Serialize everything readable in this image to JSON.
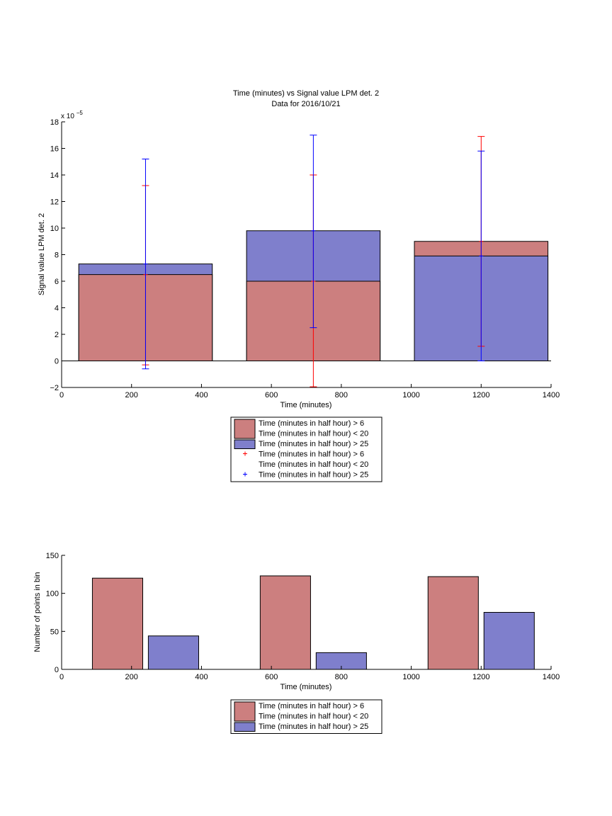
{
  "chart_data": [
    {
      "type": "bar",
      "title": "Time (minutes) vs Signal value LPM det. 2",
      "subtitle": "Data for 2016/10/21",
      "xlabel": "Time (minutes)",
      "ylabel": "Signal value LPM det. 2",
      "y_exponent_label": "x 10",
      "y_exponent_power": "−5",
      "y_scale_multiplier": 1e-05,
      "xlim": [
        0,
        1400
      ],
      "ylim": [
        -2,
        18
      ],
      "xticks": [
        "0",
        "200",
        "400",
        "600",
        "800",
        "1000",
        "1200",
        "1400"
      ],
      "yticks": [
        "−2",
        "0",
        "2",
        "4",
        "6",
        "8",
        "10",
        "12",
        "14",
        "16",
        "18"
      ],
      "grid": false,
      "legend_placement": "below",
      "x": [
        240,
        720,
        1200
      ],
      "series": [
        {
          "name": "Time (minutes in half hour) > 6\nTime (minutes in half hour) < 20",
          "color": "#cc7f7f",
          "values": [
            6.5,
            6.0,
            9.0
          ]
        },
        {
          "name": "Time (minutes in half hour) > 25",
          "color": "#7f7fcc",
          "values": [
            7.3,
            9.8,
            7.9
          ]
        }
      ],
      "errorbars": [
        {
          "name": "Time (minutes in half hour) > 6\nTime (minutes in half hour) < 20",
          "color": "#ff0000",
          "marker": "+",
          "x": [
            240,
            720,
            1200
          ],
          "center": [
            6.5,
            6.0,
            9.0
          ],
          "lower": [
            -0.3,
            -1.95,
            1.1
          ],
          "upper": [
            13.2,
            14.0,
            16.9
          ]
        },
        {
          "name": "Time (minutes in half hour) > 25",
          "color": "#0000ff",
          "marker": "+",
          "x": [
            240,
            720,
            1200
          ],
          "center": [
            7.3,
            9.8,
            7.9
          ],
          "lower": [
            -0.6,
            2.5,
            0.0
          ],
          "upper": [
            15.2,
            17.0,
            15.8
          ]
        }
      ],
      "legend": [
        {
          "label": "Time (minutes in half hour) > 6\nTime (minutes in half hour) < 20",
          "kind": "patch",
          "color": "#cc7f7f"
        },
        {
          "label": "Time (minutes in half hour) > 25",
          "kind": "patch",
          "color": "#7f7fcc"
        },
        {
          "label": "Time (minutes in half hour) > 6\nTime (minutes in half hour) < 20",
          "kind": "marker",
          "color": "#ff0000"
        },
        {
          "label": "Time (minutes in half hour) > 25",
          "kind": "marker",
          "color": "#0000ff"
        }
      ]
    },
    {
      "type": "bar",
      "title": "",
      "xlabel": "Time (minutes)",
      "ylabel": "Number of points in bin",
      "xlim": [
        0,
        1400
      ],
      "ylim": [
        0,
        150
      ],
      "xticks": [
        "0",
        "200",
        "400",
        "600",
        "800",
        "1000",
        "1200",
        "1400"
      ],
      "yticks": [
        "0",
        "50",
        "100",
        "150"
      ],
      "grid": false,
      "legend_placement": "below",
      "categories_x": [
        240,
        720,
        1200
      ],
      "series": [
        {
          "name": "Time (minutes in half hour) > 6\nTime (minutes in half hour) < 20",
          "color": "#cc7f7f",
          "x": [
            160,
            640,
            1120
          ],
          "values": [
            120,
            123,
            122
          ]
        },
        {
          "name": "Time (minutes in half hour) > 25",
          "color": "#7f7fcc",
          "x": [
            320,
            800,
            1280
          ],
          "values": [
            44,
            22,
            75
          ]
        }
      ],
      "legend": [
        {
          "label": "Time (minutes in half hour) > 6\nTime (minutes in half hour) < 20",
          "kind": "patch",
          "color": "#cc7f7f"
        },
        {
          "label": "Time (minutes in half hour) > 25",
          "kind": "patch",
          "color": "#7f7fcc"
        }
      ]
    }
  ]
}
